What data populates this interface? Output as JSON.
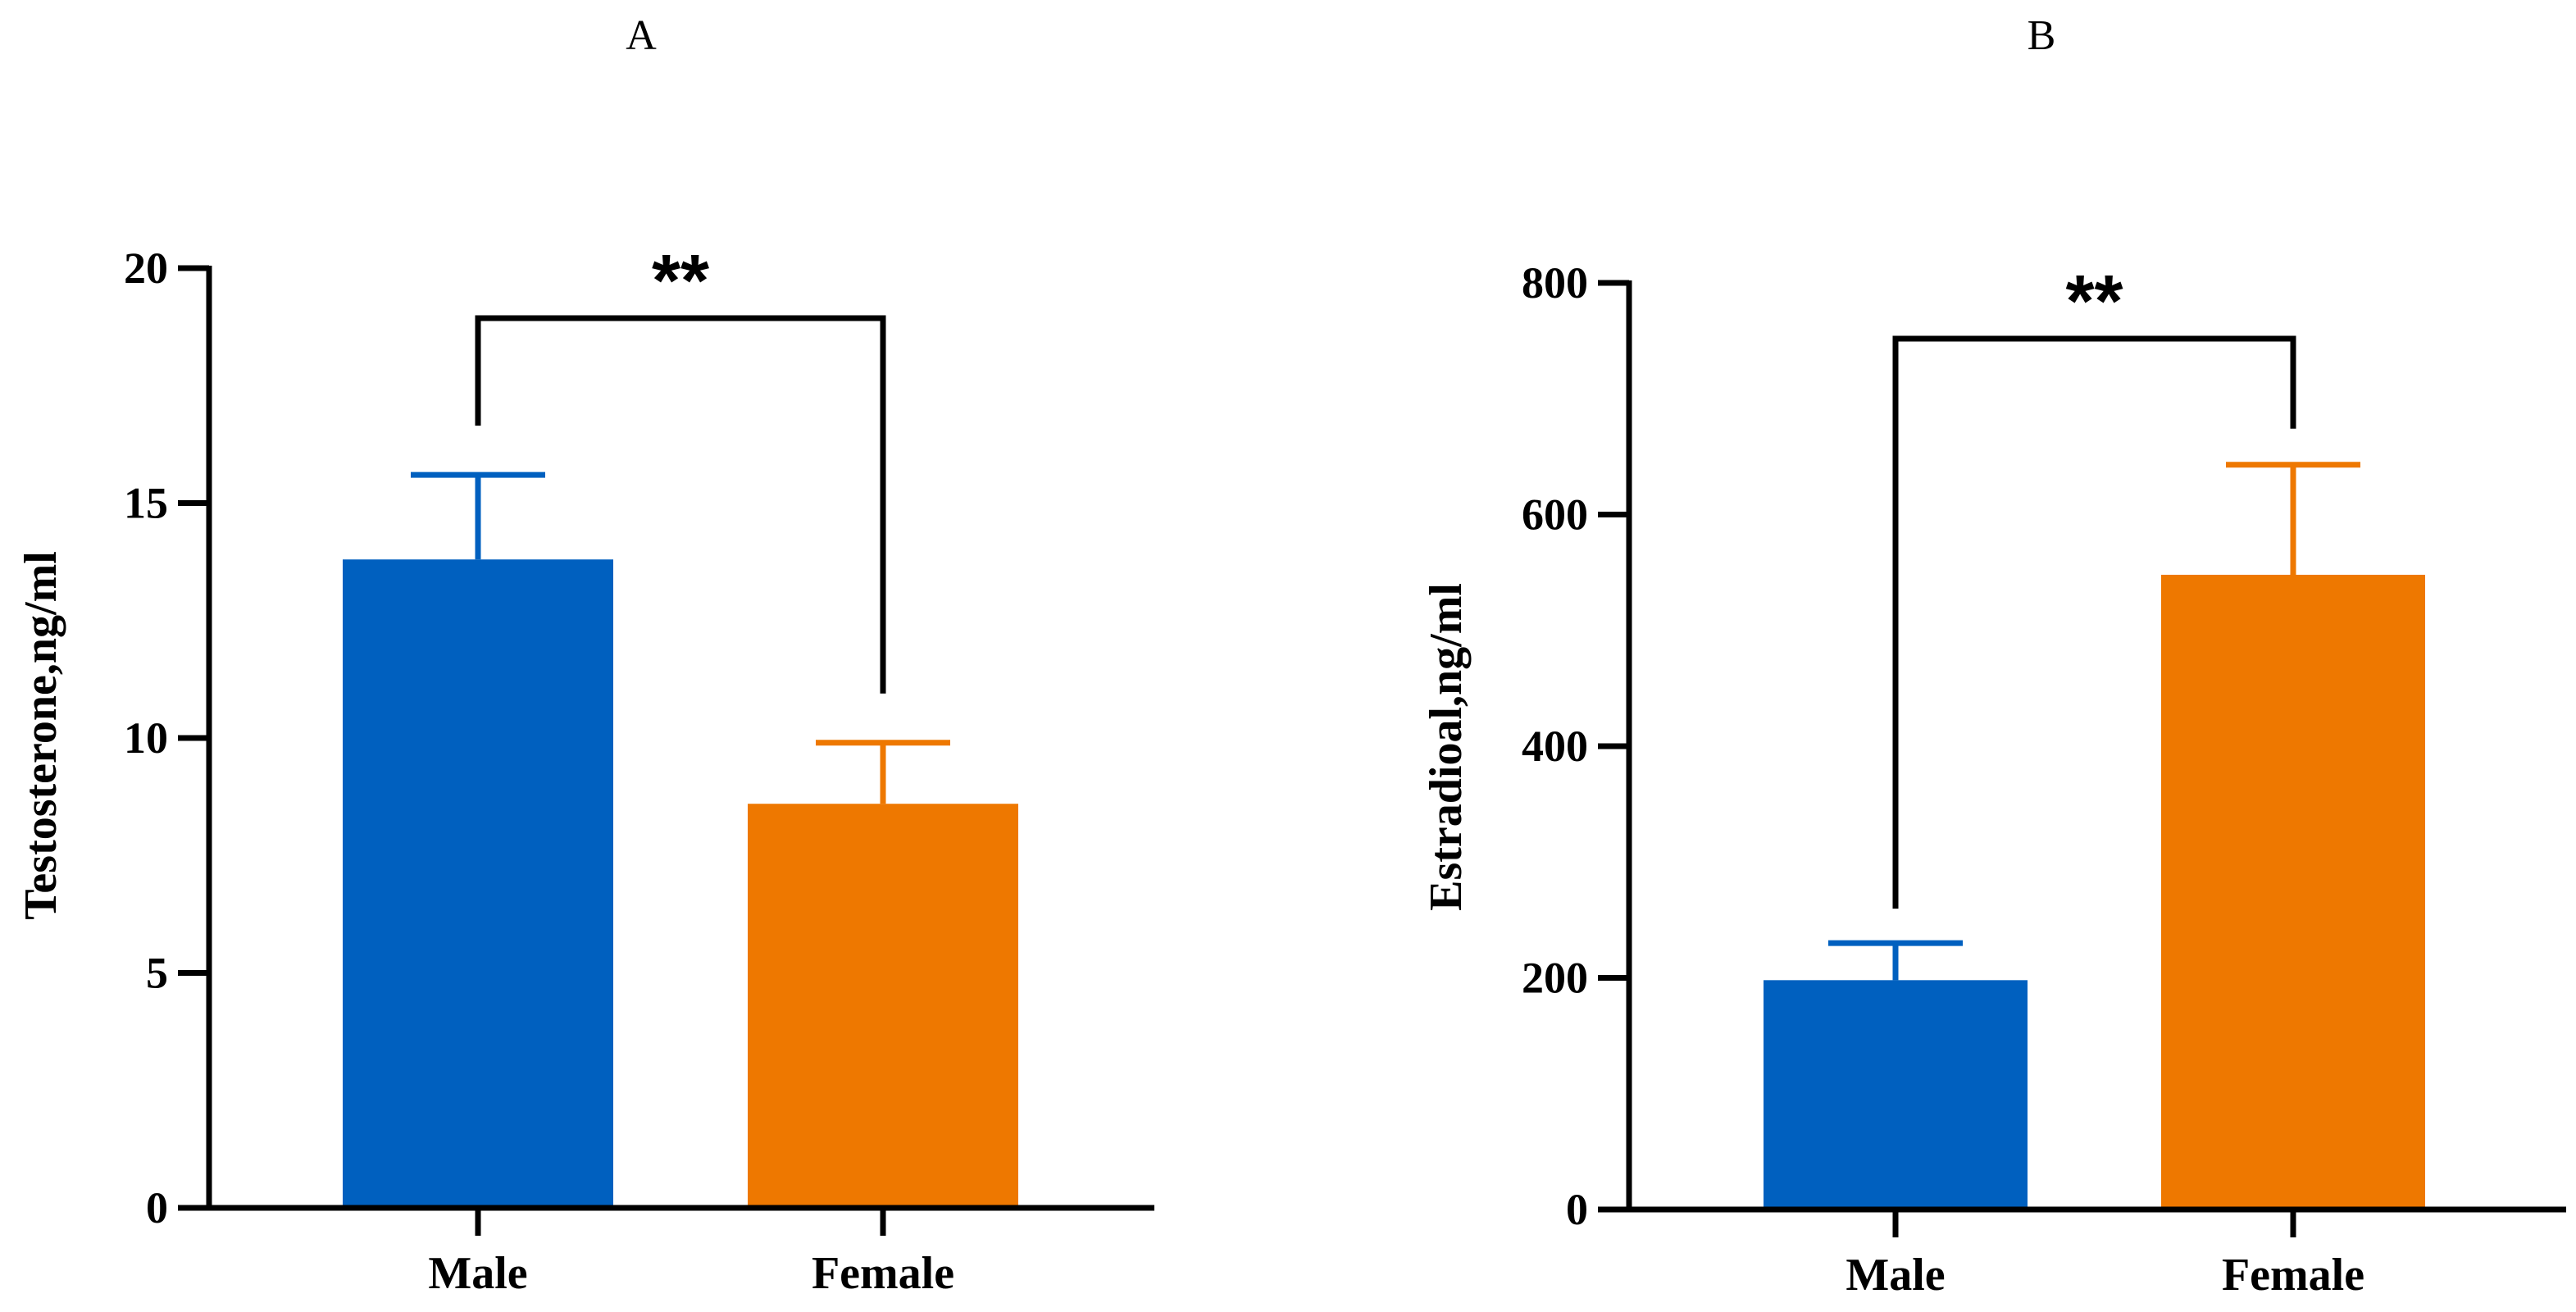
{
  "chart_data": [
    {
      "panel": "A",
      "type": "bar",
      "categories": [
        "Male",
        "Female"
      ],
      "values": [
        13.8,
        8.6
      ],
      "errors": [
        1.8,
        1.3
      ],
      "colors": [
        "#0060BF",
        "#EE7800"
      ],
      "ylabel": "Testosterone,ng/ml",
      "xlabel": "",
      "ylim": [
        0,
        20
      ],
      "yticks": [
        0,
        5,
        10,
        15,
        20
      ],
      "significance": {
        "text": "**",
        "between": [
          0,
          1
        ]
      },
      "grid": false
    },
    {
      "panel": "B",
      "type": "bar",
      "categories": [
        "Male",
        "Female"
      ],
      "values": [
        198,
        548
      ],
      "errors": [
        32,
        95
      ],
      "colors": [
        "#0060BF",
        "#EE7800"
      ],
      "ylabel": "Estradioal,ng/ml",
      "xlabel": "",
      "ylim": [
        0,
        800
      ],
      "yticks": [
        0,
        200,
        400,
        600,
        800
      ],
      "significance": {
        "text": "**",
        "between": [
          0,
          1
        ]
      },
      "grid": false
    }
  ]
}
